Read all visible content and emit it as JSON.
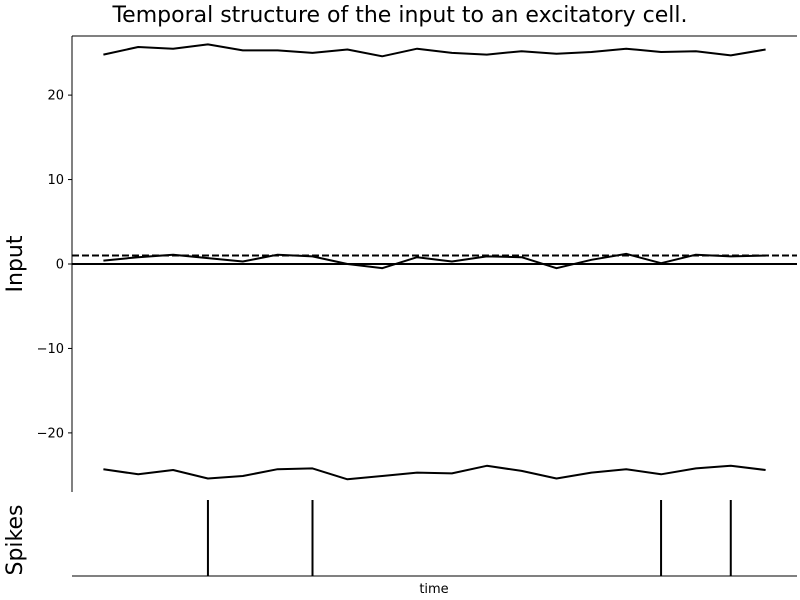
{
  "chart_data": [
    {
      "type": "line",
      "title": "Temporal structure of the input to an excitatory cell.",
      "ylabel": "Input",
      "xlabel": "",
      "ylim": [
        -27,
        27
      ],
      "xlim": [
        -0.9,
        19.9
      ],
      "yticks": [
        -20,
        -10,
        0,
        10,
        20
      ],
      "yticklabels": [
        "−20",
        "−10",
        "0",
        "10",
        "20"
      ],
      "x": [
        0,
        1,
        2,
        3,
        4,
        5,
        6,
        7,
        8,
        9,
        10,
        11,
        12,
        13,
        14,
        15,
        16,
        17,
        18,
        19
      ],
      "series": [
        {
          "values": [
            24.8,
            25.7,
            25.5,
            26.0,
            25.3,
            25.3,
            25.0,
            25.4,
            24.6,
            25.5,
            25.0,
            24.8,
            25.2,
            24.9,
            25.1,
            25.5,
            25.1,
            25.2,
            24.7,
            25.4
          ],
          "color": "#000000",
          "style": "solid"
        },
        {
          "values": [
            0.4,
            0.8,
            1.1,
            0.7,
            0.3,
            1.1,
            0.9,
            0.0,
            -0.5,
            0.8,
            0.3,
            0.9,
            0.8,
            -0.5,
            0.5,
            1.2,
            0.1,
            1.1,
            0.9,
            1.0
          ],
          "color": "#000000",
          "style": "solid"
        },
        {
          "values": [
            -24.3,
            -24.9,
            -24.4,
            -25.4,
            -25.1,
            -24.3,
            -24.2,
            -25.5,
            -25.1,
            -24.7,
            -24.8,
            -23.9,
            -24.5,
            -25.4,
            -24.7,
            -24.3,
            -24.9,
            -24.2,
            -23.9,
            -24.4
          ],
          "color": "#000000",
          "style": "solid"
        }
      ],
      "reference_lines": [
        {
          "y": 1,
          "style": "dashed",
          "color": "#000000"
        },
        {
          "y": 0,
          "style": "solid",
          "color": "#000000"
        }
      ],
      "grid": false,
      "spines": [
        "left",
        "top"
      ]
    },
    {
      "type": "spike_raster",
      "ylabel": "Spikes",
      "xlabel": "time",
      "xlim": [
        -0.9,
        19.9
      ],
      "spike_times": [
        3,
        6,
        16,
        18
      ],
      "color": "#000000",
      "grid": false,
      "spines": [
        "bottom"
      ]
    }
  ]
}
